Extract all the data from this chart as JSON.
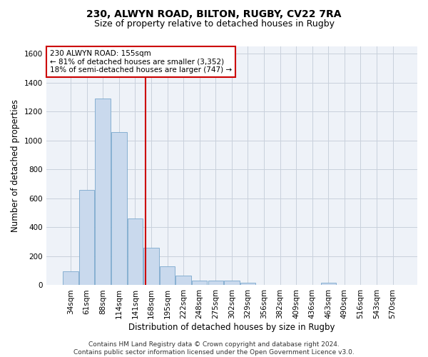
{
  "title": "230, ALWYN ROAD, BILTON, RUGBY, CV22 7RA",
  "subtitle": "Size of property relative to detached houses in Rugby",
  "xlabel": "Distribution of detached houses by size in Rugby",
  "ylabel": "Number of detached properties",
  "categories": [
    "34sqm",
    "61sqm",
    "88sqm",
    "114sqm",
    "141sqm",
    "168sqm",
    "195sqm",
    "222sqm",
    "248sqm",
    "275sqm",
    "302sqm",
    "329sqm",
    "356sqm",
    "382sqm",
    "409sqm",
    "436sqm",
    "463sqm",
    "490sqm",
    "516sqm",
    "543sqm",
    "570sqm"
  ],
  "values": [
    95,
    660,
    1290,
    1060,
    460,
    260,
    130,
    65,
    30,
    30,
    30,
    15,
    0,
    0,
    0,
    0,
    15,
    0,
    0,
    0,
    0
  ],
  "bar_color": "#c9d9ed",
  "bar_edgecolor": "#7aa8cc",
  "grid_color": "#c8d0dc",
  "background_color": "#eef2f8",
  "vline_x": 4.65,
  "vline_color": "#cc0000",
  "annotation_text": "230 ALWYN ROAD: 155sqm\n← 81% of detached houses are smaller (3,352)\n18% of semi-detached houses are larger (747) →",
  "annotation_box_color": "white",
  "annotation_box_edgecolor": "#cc0000",
  "ylim": [
    0,
    1650
  ],
  "yticks": [
    0,
    200,
    400,
    600,
    800,
    1000,
    1200,
    1400,
    1600
  ],
  "footer": "Contains HM Land Registry data © Crown copyright and database right 2024.\nContains public sector information licensed under the Open Government Licence v3.0.",
  "title_fontsize": 10,
  "subtitle_fontsize": 9,
  "xlabel_fontsize": 8.5,
  "ylabel_fontsize": 8.5,
  "tick_fontsize": 7.5,
  "annotation_fontsize": 7.5,
  "footer_fontsize": 6.5
}
